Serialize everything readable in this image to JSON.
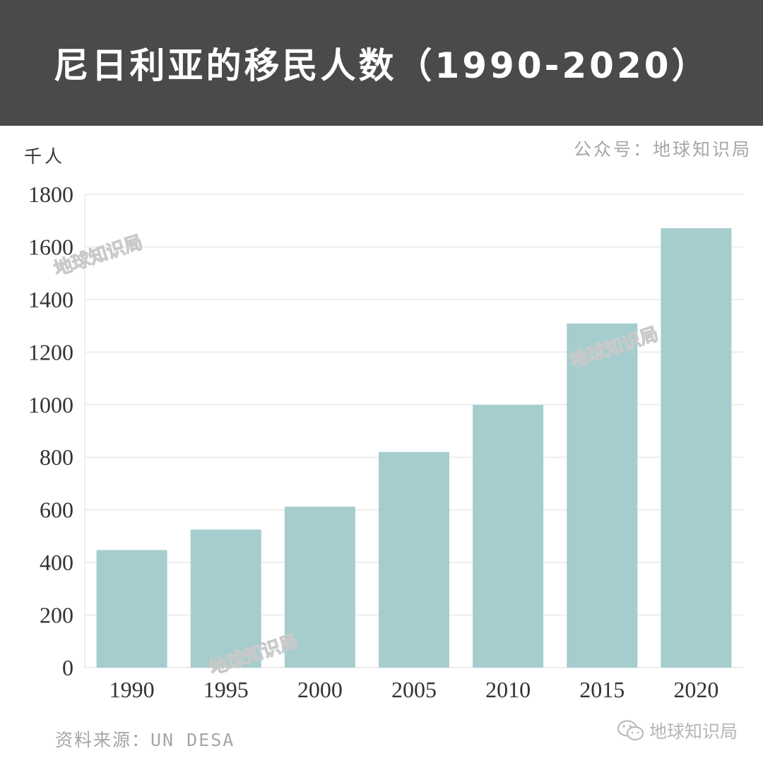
{
  "header": {
    "title": "尼日利亚的移民人数（1990-2020）"
  },
  "account_label": "公众号：地球知识局",
  "source_label": "资料来源：UN DESA",
  "brand": {
    "name": "地球知识局",
    "icon": "wechat-icon"
  },
  "watermark_text": "地球知识局",
  "colors": {
    "header_bg": "#4a4a4a",
    "bar": "#a6cdce",
    "grid": "#eeeeee",
    "muted_text": "#a6a6a6"
  },
  "chart_data": {
    "type": "bar",
    "title": "尼日利亚的移民人数（1990-2020）",
    "ylabel": "千人",
    "xlabel": "",
    "categories": [
      "1990",
      "1995",
      "2000",
      "2005",
      "2010",
      "2015",
      "2020"
    ],
    "values": [
      447,
      525,
      612,
      820,
      999,
      1309,
      1671
    ],
    "ylim": [
      0,
      1800
    ],
    "yticks": [
      0,
      200,
      400,
      600,
      800,
      1000,
      1200,
      1400,
      1600,
      1800
    ],
    "grid": true,
    "legend": "none"
  }
}
